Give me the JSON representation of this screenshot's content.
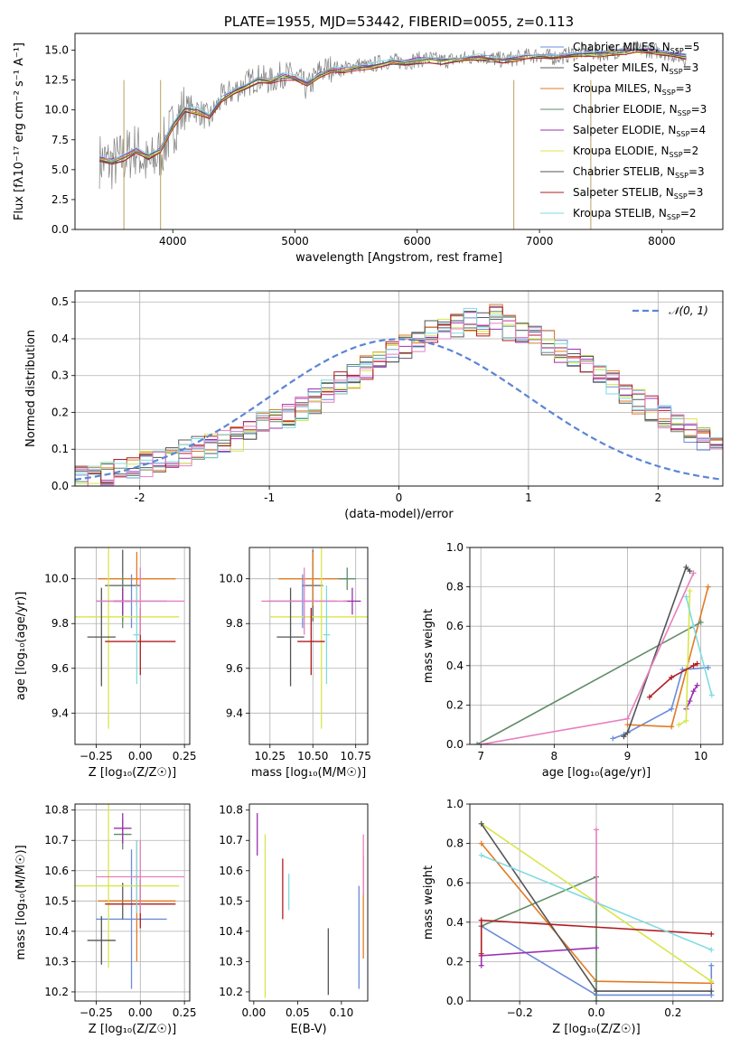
{
  "colors": {
    "Chabrier MILES": "#6b8cd9",
    "Salpeter MILES": "#5b5b5b",
    "Kroupa MILES": "#e07b24",
    "Chabrier ELODIE": "#5f8c68",
    "Salpeter ELODIE": "#9b30b0",
    "Kroupa ELODIE": "#d8e64a",
    "Chabrier STELIB": "#555555",
    "Salpeter STELIB": "#b01c20",
    "Kroupa STELIB": "#7fdbe0",
    "pink": "#e87fbf",
    "gauss": "#5b85d6",
    "spectrum": "#808080"
  },
  "chart_data": [
    {
      "id": "spectrum",
      "type": "line",
      "title": "PLATE=1955, MJD=53442, FIBERID=0055, z=0.113",
      "xlabel": "wavelength [Angstrom, rest frame]",
      "ylabel": "Flux [fλ10⁻¹⁷ erg cm⁻² s⁻¹ A⁻¹]",
      "xlim": [
        3200,
        8500
      ],
      "ylim": [
        0,
        16.4
      ],
      "xticks": [
        4000,
        5000,
        6000,
        7000,
        8000
      ],
      "yticks": [
        0.0,
        2.5,
        5.0,
        7.5,
        10.0,
        12.5,
        15.0
      ],
      "grid": false,
      "legend_position": "top-right",
      "x": [
        3400,
        3500,
        3600,
        3700,
        3800,
        3900,
        4000,
        4100,
        4200,
        4300,
        4400,
        4500,
        4600,
        4700,
        4800,
        4900,
        5000,
        5100,
        5200,
        5300,
        5400,
        5500,
        5600,
        5700,
        5800,
        5900,
        6000,
        6100,
        6200,
        6300,
        6400,
        6500,
        6600,
        6700,
        6800,
        6900,
        7000,
        7100,
        7200,
        7300,
        7400,
        7500,
        7600,
        7700,
        7800,
        7900,
        8000,
        8100,
        8200
      ],
      "data_y": [
        5.8,
        5.5,
        6.0,
        6.8,
        5.2,
        6.5,
        8.5,
        10.2,
        10.0,
        9.2,
        11.0,
        11.6,
        12.2,
        12.7,
        12.4,
        13.0,
        12.8,
        11.8,
        13.2,
        13.5,
        13.4,
        13.8,
        13.6,
        14.0,
        14.1,
        14.0,
        14.2,
        14.3,
        14.1,
        14.2,
        14.3,
        14.6,
        14.3,
        14.2,
        14.3,
        14.5,
        14.6,
        14.4,
        14.5,
        14.8,
        14.9,
        14.7,
        14.9,
        15.0,
        15.1,
        15.0,
        14.9,
        14.6,
        14.3
      ],
      "spikes": [
        {
          "x": 3600,
          "y": 0
        },
        {
          "x": 3900,
          "y": 0
        },
        {
          "x": 6790,
          "y": 0
        },
        {
          "x": 7420,
          "y": 0
        }
      ],
      "series": [
        {
          "name": "Chabrier MILES, N_SSP=5",
          "label": "Chabrier MILES, N",
          "sub": "SSP",
          "eq": "=5",
          "color": "#6b8cd9",
          "offset": 0.1
        },
        {
          "name": "Salpeter MILES, N_SSP=3",
          "label": "Salpeter MILES, N",
          "sub": "SSP",
          "eq": "=3",
          "color": "#5b5b5b",
          "offset": -0.15
        },
        {
          "name": "Kroupa MILES, N_SSP=3",
          "label": "Kroupa MILES, N",
          "sub": "SSP",
          "eq": "=3",
          "color": "#e07b24",
          "offset": 0.05
        },
        {
          "name": "Chabrier ELODIE, N_SSP=3",
          "label": "Chabrier ELODIE, N",
          "sub": "SSP",
          "eq": "=3",
          "color": "#5f8c68",
          "offset": -0.05
        },
        {
          "name": "Salpeter ELODIE, N_SSP=4",
          "label": "Salpeter ELODIE, N",
          "sub": "SSP",
          "eq": "=4",
          "color": "#9b30b0",
          "offset": 0.15
        },
        {
          "name": "Kroupa ELODIE, N_SSP=2",
          "label": "Kroupa ELODIE, N",
          "sub": "SSP",
          "eq": "=2",
          "color": "#d8e64a",
          "offset": -0.1
        },
        {
          "name": "Chabrier STELIB, N_SSP=3",
          "label": "Chabrier STELIB, N",
          "sub": "SSP",
          "eq": "=3",
          "color": "#555555",
          "offset": 0.0
        },
        {
          "name": "Salpeter STELIB, N_SSP=3",
          "label": "Salpeter STELIB, N",
          "sub": "SSP",
          "eq": "=3",
          "color": "#b01c20",
          "offset": -0.2
        },
        {
          "name": "Kroupa STELIB, N_SSP=2",
          "label": "Kroupa STELIB, N",
          "sub": "SSP",
          "eq": "=2",
          "color": "#7fdbe0",
          "offset": 0.2
        }
      ],
      "model_y": [
        5.9,
        5.7,
        6.0,
        6.6,
        6.1,
        6.6,
        8.7,
        10.0,
        9.9,
        9.4,
        10.9,
        11.5,
        12.0,
        12.5,
        12.4,
        12.8,
        12.7,
        12.1,
        12.9,
        13.3,
        13.3,
        13.6,
        13.6,
        13.8,
        14.0,
        14.0,
        14.1,
        14.2,
        14.1,
        14.2,
        14.3,
        14.4,
        14.3,
        14.2,
        14.3,
        14.4,
        14.5,
        14.4,
        14.5,
        14.6,
        14.7,
        14.7,
        14.8,
        14.9,
        15.0,
        14.9,
        14.8,
        14.6,
        14.4
      ]
    },
    {
      "id": "residuals",
      "type": "histogram",
      "xlabel": "(data-model)/error",
      "ylabel": "Normed distribution",
      "xlim": [
        -2.5,
        2.5
      ],
      "ylim": [
        0,
        0.53
      ],
      "xticks": [
        -2,
        -1,
        0,
        1,
        2
      ],
      "yticks": [
        0.0,
        0.1,
        0.2,
        0.3,
        0.4,
        0.5
      ],
      "grid": true,
      "legend_position": "top-right",
      "legend": "𝒩(0, 1)",
      "bin_width": 0.1,
      "bin_start": -2.5,
      "base_values": [
        0.02,
        0.02,
        0.03,
        0.04,
        0.05,
        0.06,
        0.07,
        0.08,
        0.09,
        0.1,
        0.11,
        0.12,
        0.13,
        0.15,
        0.17,
        0.18,
        0.19,
        0.21,
        0.23,
        0.26,
        0.28,
        0.3,
        0.32,
        0.34,
        0.36,
        0.38,
        0.4,
        0.42,
        0.43,
        0.44,
        0.45,
        0.44,
        0.46,
        0.43,
        0.42,
        0.41,
        0.39,
        0.37,
        0.35,
        0.33,
        0.31,
        0.28,
        0.25,
        0.23,
        0.21,
        0.19,
        0.17,
        0.15,
        0.13,
        0.11,
        0.09,
        0.08,
        0.07,
        0.06,
        0.05,
        0.04,
        0.04,
        0.03,
        0.03,
        0.02
      ],
      "gaussian": "N(0,1)"
    },
    {
      "id": "age-vs-Z",
      "type": "errorbar",
      "xlabel": "Z [log₁₀(Z/Z☉)]",
      "ylabel": "age  [log₁₀(age/yr)]",
      "xlim": [
        -0.37,
        0.28
      ],
      "ylim": [
        9.26,
        10.14
      ],
      "xticks": [
        -0.25,
        0.0,
        0.25
      ],
      "xticklabels": [
        "−0.25",
        "0.00",
        "0.25"
      ],
      "yticks": [
        9.4,
        9.6,
        9.8,
        10.0
      ],
      "grid": true,
      "points": [
        {
          "x": -0.05,
          "y": 9.9,
          "xerr": 0.2,
          "yerr": 0.12,
          "color": "#6b8cd9"
        },
        {
          "x": -0.1,
          "y": 9.97,
          "xerr": 0.1,
          "yerr": 0.16,
          "color": "#5b5b5b"
        },
        {
          "x": -0.02,
          "y": 10.0,
          "xerr": 0.22,
          "yerr": 0.12,
          "color": "#e07b24"
        },
        {
          "x": -0.1,
          "y": 9.9,
          "xerr": 0.05,
          "yerr": 0.12,
          "color": "#5f8c68"
        },
        {
          "x": -0.1,
          "y": 9.9,
          "xerr": 0.05,
          "yerr": 0.06,
          "color": "#9b30b0"
        },
        {
          "x": -0.18,
          "y": 9.83,
          "xerr": 0.4,
          "yerr": 0.5,
          "color": "#d8e64a"
        },
        {
          "x": -0.22,
          "y": 9.74,
          "xerr": 0.08,
          "yerr": 0.22,
          "color": "#555555"
        },
        {
          "x": 0.0,
          "y": 9.72,
          "xerr": 0.2,
          "yerr": 0.15,
          "color": "#b01c20"
        },
        {
          "x": -0.02,
          "y": 9.75,
          "xerr": 0.02,
          "yerr": 0.22,
          "color": "#7fdbe0"
        },
        {
          "x": 0.0,
          "y": 9.9,
          "xerr": 0.25,
          "yerr": 0.15,
          "color": "#e87fbf"
        }
      ]
    },
    {
      "id": "age-vs-mass",
      "type": "errorbar",
      "xlabel": "mass [log₁₀(M/M☉)]",
      "xlim": [
        10.13,
        10.82
      ],
      "ylim": [
        9.26,
        10.14
      ],
      "xticks": [
        10.25,
        10.5,
        10.75
      ],
      "xticklabels": [
        "10.25",
        "10.50",
        "10.75"
      ],
      "yticks": [
        9.4,
        9.6,
        9.8,
        10.0
      ],
      "grid": true,
      "points": [
        {
          "x": 10.44,
          "y": 9.9,
          "xerr": 0.2,
          "yerr": 0.12,
          "color": "#6b8cd9"
        },
        {
          "x": 10.5,
          "y": 9.97,
          "xerr": 0.06,
          "yerr": 0.16,
          "color": "#5b5b5b"
        },
        {
          "x": 10.5,
          "y": 10.0,
          "xerr": 0.2,
          "yerr": 0.12,
          "color": "#e07b24"
        },
        {
          "x": 10.7,
          "y": 10.0,
          "xerr": 0.05,
          "yerr": 0.05,
          "color": "#5f8c68"
        },
        {
          "x": 10.73,
          "y": 9.9,
          "xerr": 0.05,
          "yerr": 0.06,
          "color": "#9b30b0"
        },
        {
          "x": 10.55,
          "y": 9.83,
          "xerr": 0.3,
          "yerr": 0.5,
          "color": "#d8e64a"
        },
        {
          "x": 10.37,
          "y": 9.74,
          "xerr": 0.08,
          "yerr": 0.22,
          "color": "#555555"
        },
        {
          "x": 10.49,
          "y": 9.72,
          "xerr": 0.08,
          "yerr": 0.15,
          "color": "#b01c20"
        },
        {
          "x": 10.58,
          "y": 9.75,
          "xerr": 0.02,
          "yerr": 0.22,
          "color": "#7fdbe0"
        },
        {
          "x": 10.45,
          "y": 9.9,
          "xerr": 0.25,
          "yerr": 0.15,
          "color": "#e87fbf"
        }
      ]
    },
    {
      "id": "weight-vs-age",
      "type": "line",
      "xlabel": "age  [log₁₀(age/yr)]",
      "ylabel": "mass weight",
      "xlim": [
        6.85,
        10.3
      ],
      "ylim": [
        0,
        1.0
      ],
      "xticks": [
        7,
        8,
        9,
        10
      ],
      "yticks": [
        0.0,
        0.2,
        0.4,
        0.6,
        0.8,
        1.0
      ],
      "grid": true,
      "series": [
        {
          "color": "#6b8cd9",
          "x": [
            8.8,
            8.95,
            9.6,
            9.75,
            10.1
          ],
          "y": [
            0.03,
            0.05,
            0.18,
            0.38,
            0.39
          ]
        },
        {
          "color": "#e07b24",
          "x": [
            9.0,
            9.6,
            10.1
          ],
          "y": [
            0.1,
            0.09,
            0.8
          ]
        },
        {
          "color": "#5f8c68",
          "x": [
            6.95,
            10.0
          ],
          "y": [
            0.0,
            0.62
          ]
        },
        {
          "color": "#9b30b0",
          "x": [
            9.8,
            9.85,
            9.9,
            9.95
          ],
          "y": [
            0.18,
            0.22,
            0.27,
            0.3
          ]
        },
        {
          "color": "#d8e64a",
          "x": [
            9.7,
            9.8,
            9.85
          ],
          "y": [
            0.1,
            0.12,
            0.78
          ]
        },
        {
          "color": "#555555",
          "x": [
            8.95,
            9.0,
            9.8,
            9.85
          ],
          "y": [
            0.04,
            0.06,
            0.9,
            0.88
          ]
        },
        {
          "color": "#b01c20",
          "x": [
            9.3,
            9.6,
            9.9,
            9.95
          ],
          "y": [
            0.24,
            0.34,
            0.4,
            0.41
          ]
        },
        {
          "color": "#7fdbe0",
          "x": [
            9.8,
            9.9,
            10.15
          ],
          "y": [
            0.75,
            0.6,
            0.25
          ]
        },
        {
          "color": "#e87fbf",
          "x": [
            7.0,
            9.0,
            9.9
          ],
          "y": [
            0.0,
            0.13,
            0.87
          ]
        }
      ]
    },
    {
      "id": "mass-vs-Z",
      "type": "errorbar",
      "xlabel": "Z [log₁₀(Z/Z☉)]",
      "ylabel": "mass [log₁₀(M/M☉)]",
      "xlim": [
        -0.37,
        0.28
      ],
      "ylim": [
        10.17,
        10.82
      ],
      "xticks": [
        -0.25,
        0.0,
        0.25
      ],
      "xticklabels": [
        "−0.25",
        "0.00",
        "0.25"
      ],
      "yticks": [
        10.2,
        10.3,
        10.4,
        10.5,
        10.6,
        10.7,
        10.8
      ],
      "grid": true,
      "points": [
        {
          "x": -0.05,
          "y": 10.44,
          "xerr": 0.2,
          "yerr": 0.23,
          "color": "#6b8cd9"
        },
        {
          "x": -0.1,
          "y": 10.5,
          "xerr": 0.1,
          "yerr": 0.06,
          "color": "#5b5b5b"
        },
        {
          "x": -0.02,
          "y": 10.5,
          "xerr": 0.22,
          "yerr": 0.2,
          "color": "#e07b24"
        },
        {
          "x": -0.1,
          "y": 10.72,
          "xerr": 0.05,
          "yerr": 0.05,
          "color": "#5f8c68"
        },
        {
          "x": -0.1,
          "y": 10.74,
          "xerr": 0.05,
          "yerr": 0.05,
          "color": "#9b30b0"
        },
        {
          "x": -0.18,
          "y": 10.55,
          "xerr": 0.4,
          "yerr": 0.27,
          "color": "#d8e64a"
        },
        {
          "x": -0.22,
          "y": 10.37,
          "xerr": 0.08,
          "yerr": 0.08,
          "color": "#555555"
        },
        {
          "x": 0.0,
          "y": 10.49,
          "xerr": 0.2,
          "yerr": 0.08,
          "color": "#b01c20"
        },
        {
          "x": -0.02,
          "y": 10.58,
          "xerr": 0.02,
          "yerr": 0.12,
          "color": "#7fdbe0"
        },
        {
          "x": 0.0,
          "y": 10.58,
          "xerr": 0.25,
          "yerr": 0.12,
          "color": "#e87fbf"
        }
      ]
    },
    {
      "id": "mass-vs-EBV",
      "type": "errorbar",
      "xlabel": "E(B-V)",
      "xlim": [
        -0.005,
        0.13
      ],
      "ylim": [
        10.17,
        10.82
      ],
      "xticks": [
        0.0,
        0.05,
        0.1
      ],
      "xticklabels": [
        "0.00",
        "0.05",
        "0.10"
      ],
      "yticks": [
        10.2,
        10.3,
        10.4,
        10.5,
        10.6,
        10.7,
        10.8
      ],
      "grid": false,
      "points": [
        {
          "x": 0.12,
          "y": 10.38,
          "xerr": 0.0,
          "yerr": 0.17,
          "color": "#6b8cd9"
        },
        {
          "x": 0.125,
          "y": 10.48,
          "xerr": 0.0,
          "yerr": 0.17,
          "color": "#e07b24"
        },
        {
          "x": 0.004,
          "y": 10.72,
          "xerr": 0.0,
          "yerr": 0.07,
          "color": "#9b30b0"
        },
        {
          "x": 0.013,
          "y": 10.45,
          "xerr": 0.0,
          "yerr": 0.27,
          "color": "#d8e64a"
        },
        {
          "x": 0.085,
          "y": 10.3,
          "xerr": 0.0,
          "yerr": 0.11,
          "color": "#555555"
        },
        {
          "x": 0.033,
          "y": 10.54,
          "xerr": 0.0,
          "yerr": 0.1,
          "color": "#b01c20"
        },
        {
          "x": 0.04,
          "y": 10.53,
          "xerr": 0.0,
          "yerr": 0.06,
          "color": "#7fdbe0"
        },
        {
          "x": 0.125,
          "y": 10.62,
          "xerr": 0.0,
          "yerr": 0.1,
          "color": "#e87fbf"
        }
      ]
    },
    {
      "id": "weight-vs-Z",
      "type": "line",
      "xlabel": "Z [log₁₀(Z/Z☉)]",
      "ylabel": "mass weight",
      "xlim": [
        -0.33,
        0.33
      ],
      "ylim": [
        0,
        1.0
      ],
      "xticks": [
        -0.2,
        0.0,
        0.2
      ],
      "xticklabels": [
        "−0.2",
        "0.0",
        "0.2"
      ],
      "yticks": [
        0.0,
        0.2,
        0.4,
        0.6,
        0.8,
        1.0
      ],
      "grid": true,
      "series": [
        {
          "color": "#6b8cd9",
          "x": [
            -0.3,
            0.0,
            0.3,
            0.3
          ],
          "y": [
            0.38,
            0.03,
            0.03,
            0.18
          ]
        },
        {
          "color": "#e07b24",
          "x": [
            -0.3,
            0.0,
            0.0,
            0.3
          ],
          "y": [
            0.8,
            0.1,
            0.1,
            0.09
          ]
        },
        {
          "color": "#5f8c68",
          "x": [
            -0.3,
            0.0,
            0.0
          ],
          "y": [
            0.38,
            0.63,
            0.0
          ]
        },
        {
          "color": "#9b30b0",
          "x": [
            -0.3,
            -0.3,
            -0.3,
            0.0
          ],
          "y": [
            0.18,
            0.23,
            0.23,
            0.27
          ]
        },
        {
          "color": "#d8e64a",
          "x": [
            -0.3,
            0.3
          ],
          "y": [
            0.9,
            0.1
          ]
        },
        {
          "color": "#555555",
          "x": [
            -0.3,
            0.0,
            0.3
          ],
          "y": [
            0.9,
            0.05,
            0.05
          ]
        },
        {
          "color": "#b01c20",
          "x": [
            -0.3,
            -0.3,
            0.3
          ],
          "y": [
            0.24,
            0.41,
            0.34
          ]
        },
        {
          "color": "#7fdbe0",
          "x": [
            -0.3,
            0.3
          ],
          "y": [
            0.74,
            0.26
          ]
        },
        {
          "color": "#e87fbf",
          "x": [
            0.0,
            0.0
          ],
          "y": [
            0.87,
            0.5
          ]
        }
      ]
    }
  ]
}
